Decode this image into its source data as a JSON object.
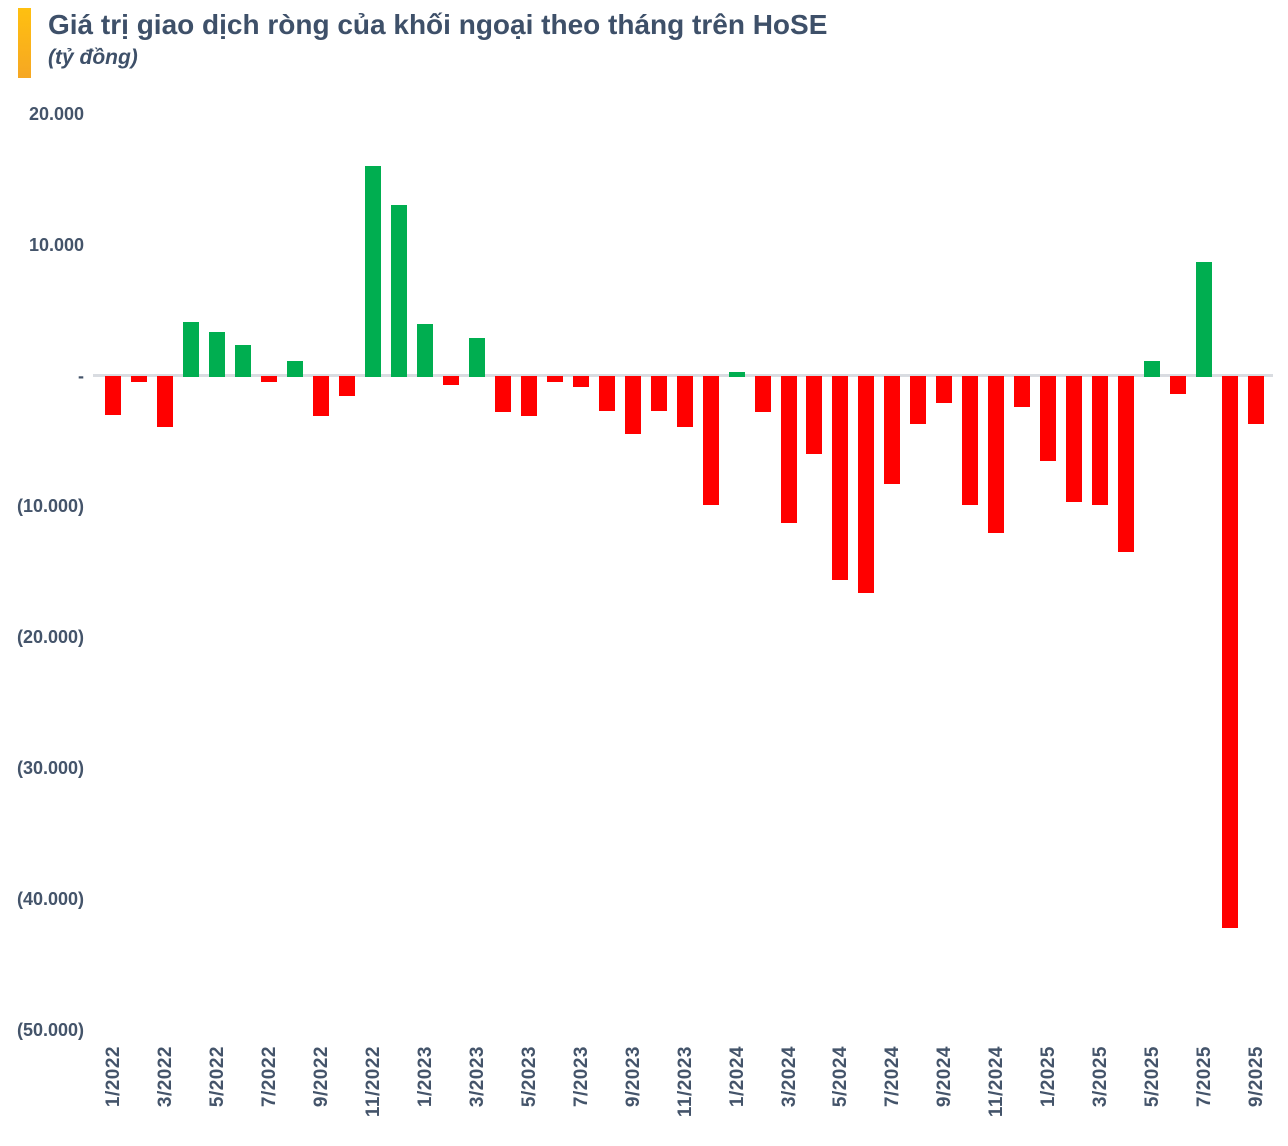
{
  "header": {
    "title": "Giá trị giao dịch ròng của khối ngoại theo tháng trên HoSE",
    "subtitle": "(tỷ đồng)",
    "accent_color": "#FFC010"
  },
  "chart_data": {
    "type": "bar",
    "title": "Giá trị giao dịch ròng của khối ngoại theo tháng trên HoSE",
    "unit": "tỷ đồng",
    "categories": [
      "1/2022",
      "2/2022",
      "3/2022",
      "4/2022",
      "5/2022",
      "6/2022",
      "7/2022",
      "8/2022",
      "9/2022",
      "10/2022",
      "11/2022",
      "12/2022",
      "1/2023",
      "2/2023",
      "3/2023",
      "4/2023",
      "5/2023",
      "6/2023",
      "7/2023",
      "8/2023",
      "9/2023",
      "10/2023",
      "11/2023",
      "12/2023",
      "1/2024",
      "2/2024",
      "3/2024",
      "4/2024",
      "5/2024",
      "6/2024",
      "7/2024",
      "8/2024",
      "9/2024",
      "10/2024",
      "11/2024",
      "12/2024",
      "1/2025",
      "2/2025",
      "3/2025",
      "4/2025",
      "5/2025",
      "6/2025",
      "7/2025",
      "8/2025",
      "9/2025"
    ],
    "values": [
      -3000,
      -500,
      -3900,
      4100,
      3300,
      2300,
      -500,
      1100,
      -3100,
      -1600,
      16000,
      13000,
      3900,
      -700,
      2900,
      -2800,
      -3100,
      -500,
      -900,
      -2700,
      -4500,
      -2700,
      -3900,
      -9900,
      300,
      -2800,
      -11300,
      -6000,
      -15600,
      -16600,
      -8300,
      -3700,
      -2100,
      -9900,
      -12000,
      -2400,
      -6500,
      -9700,
      -9900,
      -13500,
      1100,
      -1400,
      8700,
      -42200,
      -3700
    ],
    "positive_color": "#00AE50",
    "negative_color": "#FF0000",
    "zero_line_color": "#D9DCE1",
    "axis_text_color": "#44546A",
    "y_ticks": [
      "20.000",
      "10.000",
      "-",
      "(10.000)",
      "(20.000)",
      "(30.000)",
      "(40.000)",
      "(50.000)"
    ],
    "y_tick_values": [
      20000,
      10000,
      0,
      -10000,
      -20000,
      -30000,
      -40000,
      -50000
    ],
    "ylim": [
      -50000,
      20000
    ],
    "x_tick_every": 2,
    "x_label_rotation_deg": 90,
    "grid": false,
    "legend": "none"
  }
}
